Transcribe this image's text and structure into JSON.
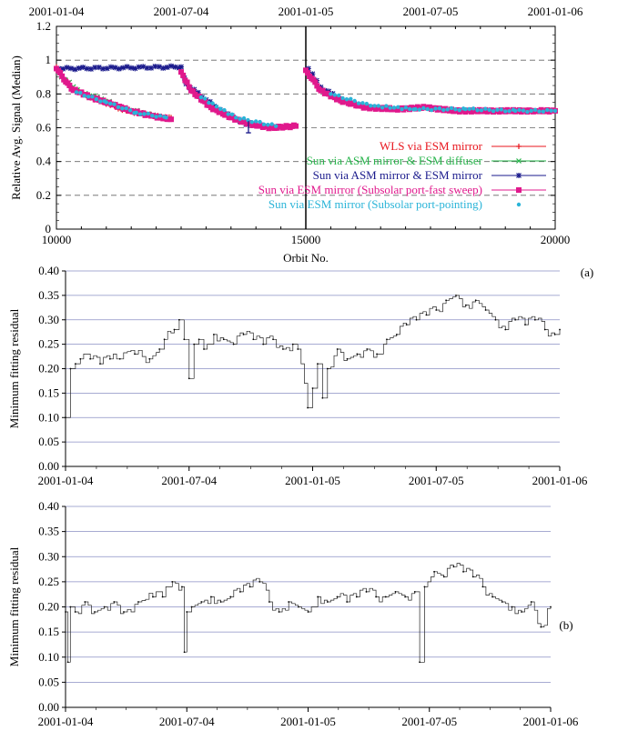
{
  "chart_data": [
    {
      "type": "scatter",
      "title": "",
      "top_axis_labels": [
        "2001-01-04",
        "2001-07-04",
        "2001-01-05",
        "2001-07-05",
        "2001-01-06"
      ],
      "xlabel": "Orbit No.",
      "ylabel": "Relative Avg. Signal (Median)",
      "xlim": [
        10000,
        20000
      ],
      "ylim": [
        0,
        1.2
      ],
      "x_ticks": [
        "10000",
        "15000",
        "20000"
      ],
      "y_ticks": [
        "0",
        "0.2",
        "0.4",
        "0.6",
        "0.8",
        "1",
        "1.2"
      ],
      "grid": "dashed horizontal",
      "legend_position": "lower-right",
      "series": [
        {
          "name": "WLS via ESM mirror",
          "color": "#e8141c",
          "marker": "plus",
          "x": [
            10000,
            10300,
            10600,
            11000,
            11400,
            11800,
            12300
          ],
          "y": [
            0.96,
            0.84,
            0.79,
            0.74,
            0.7,
            0.68,
            0.66
          ]
        },
        {
          "name": "Sun via ASM mirror & ESM diffuser",
          "color": "#26b44a",
          "marker": "x",
          "x": [
            10100,
            10500,
            10900,
            11300,
            11700,
            12100
          ],
          "y": [
            0.9,
            0.81,
            0.77,
            0.72,
            0.69,
            0.66
          ]
        },
        {
          "name": "Sun via ASM mirror & ESM mirror",
          "color": "#1a1a8c",
          "marker": "star",
          "x": [
            10050,
            12500,
            12600,
            13200,
            13800,
            15050,
            15300,
            15700
          ],
          "y": [
            0.95,
            0.96,
            0.86,
            0.72,
            0.62,
            0.95,
            0.84,
            0.77
          ]
        },
        {
          "name": "Sun via ESM mirror (Subsolar port-fast sweep)",
          "color": "#e0198c",
          "marker": "square",
          "x": [
            10000,
            10300,
            10700,
            11100,
            11500,
            11900,
            12300,
            12500,
            12700,
            13100,
            13500,
            13900,
            14300,
            14800,
            15000,
            15300,
            15700,
            16200,
            16800,
            17400,
            18000,
            18800,
            19600,
            20000
          ],
          "y": [
            0.95,
            0.83,
            0.78,
            0.74,
            0.7,
            0.67,
            0.65,
            0.93,
            0.82,
            0.72,
            0.66,
            0.62,
            0.6,
            0.61,
            0.94,
            0.82,
            0.76,
            0.72,
            0.71,
            0.72,
            0.7,
            0.7,
            0.7,
            0.7
          ]
        },
        {
          "name": "Sun via ESM mirror (Subsolar port-pointing)",
          "color": "#2ab4d8",
          "marker": "dot",
          "x": [
            10400,
            11000,
            11600,
            12200,
            12900,
            13600,
            14400,
            15500,
            16300,
            17200,
            18200,
            19200,
            20000
          ],
          "y": [
            0.81,
            0.75,
            0.69,
            0.66,
            0.78,
            0.66,
            0.61,
            0.8,
            0.73,
            0.71,
            0.71,
            0.7,
            0.7
          ]
        }
      ],
      "legend_annotation": ""
    },
    {
      "type": "line",
      "panel_label": "(a)",
      "xlabel": "",
      "ylabel": "Minimum fitting residual",
      "ylim": [
        0,
        0.4
      ],
      "y_ticks": [
        "0.00",
        "0.05",
        "0.10",
        "0.15",
        "0.20",
        "0.25",
        "0.30",
        "0.35",
        "0.40"
      ],
      "x_ticks": [
        "2001-01-04",
        "2001-07-04",
        "2001-01-05",
        "2001-07-05",
        "2001-01-06"
      ],
      "grid": "horizontal",
      "x": [
        0.0,
        0.01,
        0.02,
        0.03,
        0.05,
        0.07,
        0.09,
        0.11,
        0.14,
        0.17,
        0.19,
        0.2,
        0.22,
        0.23,
        0.24,
        0.25,
        0.26,
        0.27,
        0.28,
        0.3,
        0.32,
        0.34,
        0.36,
        0.38,
        0.4,
        0.42,
        0.44,
        0.46,
        0.47,
        0.49,
        0.5,
        0.51,
        0.52,
        0.53,
        0.55,
        0.57,
        0.59,
        0.61,
        0.63,
        0.65,
        0.67,
        0.69,
        0.71,
        0.73,
        0.75,
        0.77,
        0.79,
        0.81,
        0.83,
        0.85,
        0.87,
        0.89,
        0.91,
        0.93,
        0.95,
        0.97,
        0.99,
        1.0
      ],
      "y": [
        0.1,
        0.2,
        0.21,
        0.22,
        0.22,
        0.21,
        0.22,
        0.22,
        0.23,
        0.22,
        0.24,
        0.26,
        0.28,
        0.3,
        0.26,
        0.18,
        0.25,
        0.26,
        0.24,
        0.27,
        0.26,
        0.25,
        0.27,
        0.26,
        0.25,
        0.26,
        0.24,
        0.25,
        0.24,
        0.12,
        0.16,
        0.21,
        0.14,
        0.2,
        0.24,
        0.22,
        0.23,
        0.24,
        0.23,
        0.26,
        0.27,
        0.29,
        0.3,
        0.31,
        0.32,
        0.34,
        0.35,
        0.33,
        0.34,
        0.32,
        0.3,
        0.28,
        0.3,
        0.29,
        0.3,
        0.28,
        0.27,
        0.28
      ]
    },
    {
      "type": "line",
      "panel_label": "(b)",
      "xlabel": "",
      "ylabel": "Minimum fitting residual",
      "ylim": [
        0,
        0.4
      ],
      "y_ticks": [
        "0.00",
        "0.05",
        "0.10",
        "0.15",
        "0.20",
        "0.25",
        "0.30",
        "0.35",
        "0.40"
      ],
      "x_ticks": [
        "2001-01-04",
        "2001-07-04",
        "2001-01-05",
        "2001-07-05",
        "2001-01-06"
      ],
      "grid": "horizontal",
      "x": [
        0.0,
        0.005,
        0.01,
        0.02,
        0.04,
        0.06,
        0.08,
        0.1,
        0.12,
        0.15,
        0.18,
        0.2,
        0.22,
        0.24,
        0.245,
        0.25,
        0.26,
        0.28,
        0.3,
        0.32,
        0.34,
        0.36,
        0.38,
        0.4,
        0.42,
        0.44,
        0.46,
        0.48,
        0.5,
        0.52,
        0.54,
        0.56,
        0.58,
        0.6,
        0.62,
        0.64,
        0.66,
        0.68,
        0.7,
        0.72,
        0.73,
        0.74,
        0.76,
        0.78,
        0.8,
        0.82,
        0.84,
        0.86,
        0.88,
        0.9,
        0.92,
        0.94,
        0.96,
        0.98,
        1.0
      ],
      "y": [
        0.19,
        0.09,
        0.2,
        0.19,
        0.21,
        0.19,
        0.2,
        0.21,
        0.19,
        0.21,
        0.22,
        0.22,
        0.25,
        0.24,
        0.11,
        0.19,
        0.2,
        0.21,
        0.22,
        0.21,
        0.22,
        0.23,
        0.24,
        0.25,
        0.21,
        0.19,
        0.21,
        0.2,
        0.19,
        0.22,
        0.21,
        0.22,
        0.21,
        0.22,
        0.23,
        0.22,
        0.22,
        0.23,
        0.22,
        0.23,
        0.09,
        0.24,
        0.27,
        0.26,
        0.28,
        0.27,
        0.26,
        0.24,
        0.22,
        0.21,
        0.2,
        0.19,
        0.21,
        0.16,
        0.2
      ]
    }
  ],
  "legend": [
    {
      "label": "WLS via ESM mirror",
      "color": "#e8141c"
    },
    {
      "label": "Sun via ASM mirror & ESM diffuser",
      "color": "#26b44a"
    },
    {
      "label": "Sun via ASM mirror & ESM mirror",
      "color": "#1a1a8c"
    },
    {
      "label": "Sun via ESM mirror (Subsolar port-fast sweep)",
      "color": "#e0198c"
    },
    {
      "label": "Sun via ESM mirror (Subsolar port-pointing)",
      "color": "#2ab4d8"
    }
  ]
}
